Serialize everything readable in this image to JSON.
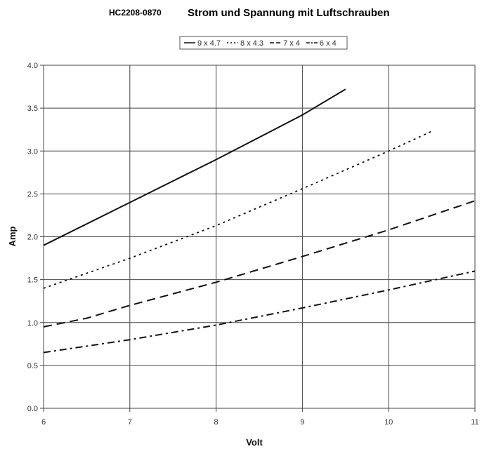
{
  "chart_data": {
    "type": "line",
    "title_code": "HC2208-0870",
    "title": "Strom und Spannung  mit Luftschrauben",
    "xlabel": "Volt",
    "ylabel": "Amp",
    "xlim": [
      6,
      11
    ],
    "ylim": [
      0,
      4
    ],
    "x_ticks": [
      "6",
      "7",
      "8",
      "9",
      "10",
      "11"
    ],
    "y_ticks": [
      "0.0",
      "0.5",
      "1.0",
      "1.5",
      "2.0",
      "2.5",
      "3.0",
      "3.5",
      "4.0"
    ],
    "grid": true,
    "legend_position": "top-center",
    "series": [
      {
        "name": "9 x 4.7",
        "style": "solid",
        "x": [
          6,
          7,
          8,
          9,
          9.5
        ],
        "y": [
          1.9,
          2.4,
          2.9,
          3.42,
          3.72
        ]
      },
      {
        "name": "8 x 4.3",
        "style": "dotted",
        "x": [
          6,
          7,
          8,
          9,
          10,
          10.5
        ],
        "y": [
          1.4,
          1.75,
          2.13,
          2.56,
          3.0,
          3.23
        ]
      },
      {
        "name": "7 x 4",
        "style": "dashed",
        "x": [
          6,
          6.5,
          7,
          8,
          9,
          10,
          11
        ],
        "y": [
          0.95,
          1.05,
          1.2,
          1.47,
          1.77,
          2.08,
          2.42
        ]
      },
      {
        "name": "6 x 4",
        "style": "dashdot",
        "x": [
          6,
          7,
          8,
          9,
          10,
          11
        ],
        "y": [
          0.65,
          0.8,
          0.97,
          1.17,
          1.38,
          1.6
        ]
      }
    ]
  }
}
